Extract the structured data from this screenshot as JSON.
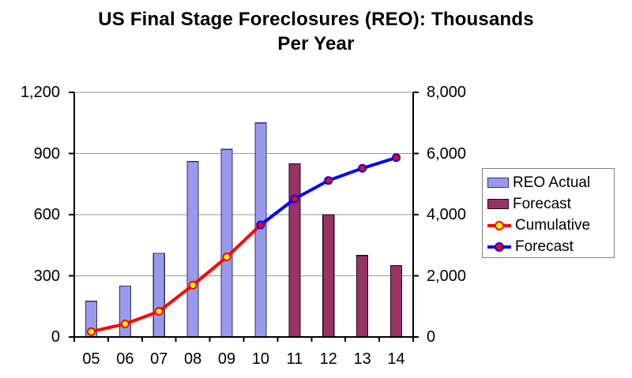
{
  "chart_data": {
    "type": "combo",
    "title": "US Final Stage Foreclosures (REO): Thousands Per Year",
    "title_lines": [
      "US Final Stage Foreclosures (REO): Thousands",
      "Per Year"
    ],
    "categories": [
      "05",
      "06",
      "07",
      "08",
      "09",
      "10",
      "11",
      "12",
      "13",
      "14"
    ],
    "grid": true,
    "legend_position": "right",
    "left_axis": {
      "min": 0,
      "max": 1200,
      "tick_values": [
        0,
        300,
        600,
        900,
        1200
      ],
      "tick_labels": [
        "0",
        "300",
        "600",
        "900",
        "1,200"
      ]
    },
    "right_axis": {
      "min": 0,
      "max": 8000,
      "tick_values": [
        0,
        2000,
        4000,
        6000,
        8000
      ],
      "tick_labels": [
        "0",
        "2,000",
        "4,000",
        "6,000",
        "8,000"
      ]
    },
    "series": [
      {
        "name": "REO Actual",
        "type": "bar",
        "axis": "left",
        "categories": [
          "05",
          "06",
          "07",
          "08",
          "09",
          "10"
        ],
        "values": [
          175,
          250,
          410,
          860,
          920,
          1050
        ],
        "fill": "#9999EE",
        "stroke": "#333366"
      },
      {
        "name": "Forecast",
        "type": "bar",
        "axis": "left",
        "categories": [
          "11",
          "12",
          "13",
          "14"
        ],
        "values": [
          850,
          600,
          400,
          350
        ],
        "fill": "#993366",
        "stroke": "#1F0A14"
      },
      {
        "name": "Cumulative",
        "type": "line",
        "axis": "right",
        "categories": [
          "05",
          "06",
          "07",
          "08",
          "09",
          "10"
        ],
        "values": [
          175,
          425,
          835,
          1695,
          2615,
          3665
        ],
        "line_color": "#FF0000",
        "marker_fill": "#FFFF00",
        "marker_stroke": "#FF0000"
      },
      {
        "name": "Forecast",
        "type": "line",
        "axis": "right",
        "categories": [
          "10",
          "11",
          "12",
          "13",
          "14"
        ],
        "values": [
          3665,
          4515,
          5115,
          5515,
          5865
        ],
        "line_color": "#0000FF",
        "marker_fill": "#FF0000",
        "marker_stroke": "#0000FF"
      }
    ],
    "legend": {
      "items": [
        {
          "label": "REO Actual",
          "swatch": "bar",
          "fill": "#9999EE",
          "stroke": "#333366"
        },
        {
          "label": "Forecast",
          "swatch": "bar",
          "fill": "#993366",
          "stroke": "#1F0A14"
        },
        {
          "label": "Cumulative",
          "swatch": "line",
          "line": "#FF0000",
          "marker_fill": "#FFFF00",
          "marker_stroke": "#FF0000"
        },
        {
          "label": "Forecast",
          "swatch": "line",
          "line": "#0000FF",
          "marker_fill": "#FF0000",
          "marker_stroke": "#0000FF"
        }
      ]
    },
    "colors": {
      "gridline": "#999999",
      "axis": "#000000",
      "background": "#FFFFFF"
    }
  }
}
